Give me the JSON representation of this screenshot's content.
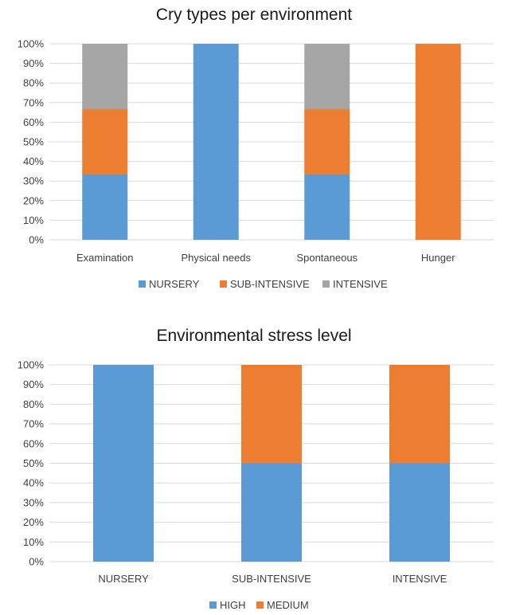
{
  "chart_data": [
    {
      "type": "bar",
      "stacked": true,
      "title": "Cry types per environment",
      "categories": [
        "Examination",
        "Physical needs",
        "Spontaneous",
        "Hunger"
      ],
      "series": [
        {
          "name": "NURSERY",
          "color": "#5b9bd5",
          "values": [
            33.33,
            100,
            33.33,
            0
          ]
        },
        {
          "name": "SUB-INTENSIVE",
          "color": "#ed7d31",
          "values": [
            33.33,
            0,
            33.33,
            100
          ]
        },
        {
          "name": "INTENSIVE",
          "color": "#a5a5a5",
          "values": [
            33.33,
            0,
            33.33,
            0
          ]
        }
      ],
      "yticks": [
        "0%",
        "10%",
        "20%",
        "30%",
        "40%",
        "50%",
        "60%",
        "70%",
        "80%",
        "90%",
        "100%"
      ],
      "ylim": [
        0,
        100
      ],
      "grid": true,
      "legend": "bottom"
    },
    {
      "type": "bar",
      "stacked": true,
      "title": "Environmental stress level",
      "categories": [
        "NURSERY",
        "SUB-INTENSIVE",
        "INTENSIVE"
      ],
      "series": [
        {
          "name": "HIGH",
          "color": "#5b9bd5",
          "values": [
            100,
            50,
            50
          ]
        },
        {
          "name": "MEDIUM",
          "color": "#ed7d31",
          "values": [
            0,
            50,
            50
          ]
        }
      ],
      "yticks": [
        "0%",
        "10%",
        "20%",
        "30%",
        "40%",
        "50%",
        "60%",
        "70%",
        "80%",
        "90%",
        "100%"
      ],
      "ylim": [
        0,
        100
      ],
      "grid": true,
      "legend": "bottom"
    }
  ]
}
